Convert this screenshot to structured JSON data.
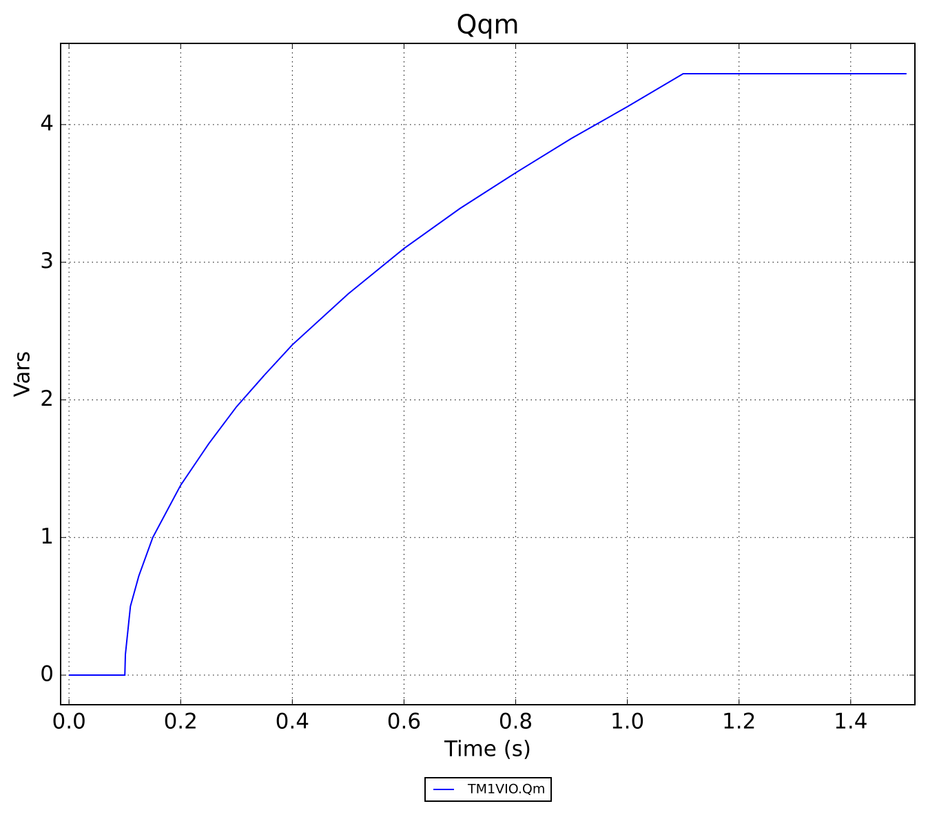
{
  "chart_data": {
    "type": "line",
    "title": "Qqm",
    "x_label": "Time (s)",
    "y_label": "Vars",
    "x": [
      0,
      0.1,
      0.101,
      0.11,
      0.125,
      0.15,
      0.2,
      0.25,
      0.3,
      0.35,
      0.4,
      0.5,
      0.6,
      0.7,
      0.8,
      0.9,
      1.0,
      1.1,
      1.5
    ],
    "series": [
      {
        "name": "TM1VIO.Qm",
        "color": "#0000ff",
        "values": [
          0,
          0,
          0.15,
          0.5,
          0.72,
          1.0,
          1.38,
          1.68,
          1.95,
          2.18,
          2.4,
          2.77,
          3.1,
          3.39,
          3.65,
          3.9,
          4.13,
          4.37,
          4.37
        ]
      }
    ],
    "xlim": [
      -0.015,
      1.515
    ],
    "ylim": [
      -0.215,
      4.59
    ],
    "xticks": [
      {
        "value": 0,
        "label": "0.0"
      },
      0.2,
      0.4,
      0.6,
      0.8,
      {
        "value": 1,
        "label": "1.0"
      },
      1.2,
      1.4
    ],
    "yticks": [
      0,
      1,
      2,
      3,
      4
    ],
    "grid": true,
    "legend": "bottom"
  }
}
